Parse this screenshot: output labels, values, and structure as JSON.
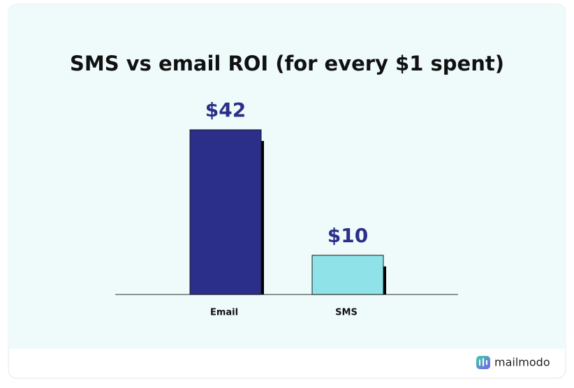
{
  "chart_data": {
    "type": "bar",
    "title": "SMS vs email ROI (for every $1 spent)",
    "categories": [
      "Email",
      "SMS"
    ],
    "values": [
      42,
      10
    ],
    "value_labels": [
      "$42",
      "$10"
    ],
    "colors": [
      "#2b2f8a",
      "#8ee2e8"
    ]
  },
  "brand": "mailmodo"
}
